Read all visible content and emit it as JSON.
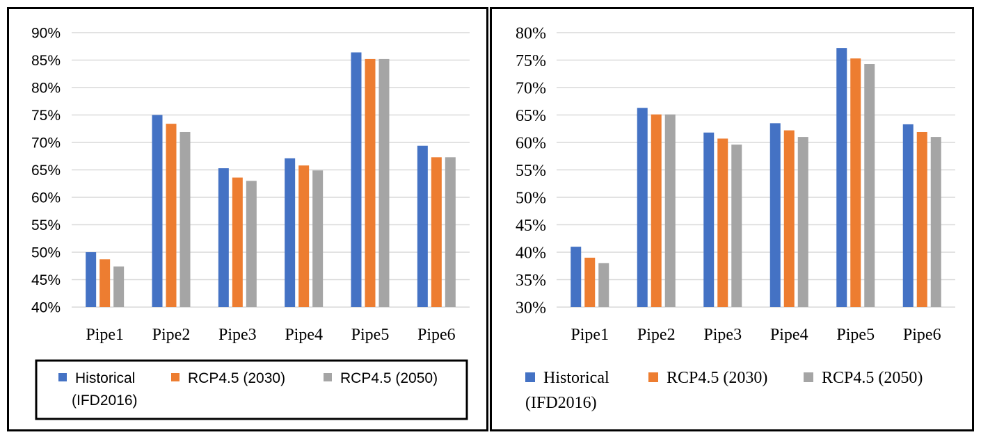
{
  "colors": {
    "historical": "#4472C4",
    "rcp2030": "#ED7D31",
    "rcp2050": "#A5A5A5",
    "grid": "#D9D9D9"
  },
  "chart_data": [
    {
      "type": "bar",
      "categories": [
        "Pipe1",
        "Pipe2",
        "Pipe3",
        "Pipe4",
        "Pipe5",
        "Pipe6"
      ],
      "series": [
        {
          "name": "Historical (IFD2016)",
          "values": [
            50.0,
            75.0,
            65.3,
            67.1,
            86.4,
            69.4
          ]
        },
        {
          "name": "RCP4.5 (2030)",
          "values": [
            48.7,
            73.4,
            63.6,
            65.8,
            85.2,
            67.3
          ]
        },
        {
          "name": "RCP4.5 (2050)",
          "values": [
            47.4,
            71.9,
            63.0,
            64.9,
            85.2,
            67.3
          ]
        }
      ],
      "ylim": [
        40,
        90
      ],
      "yticks": [
        "40%",
        "45%",
        "50%",
        "55%",
        "60%",
        "65%",
        "70%",
        "75%",
        "80%",
        "85%",
        "90%"
      ],
      "legend_lines": {
        "historical": [
          "Historical",
          "(IFD2016)"
        ],
        "rcp2030": "RCP4.5 (2030)",
        "rcp2050": "RCP4.5 (2050)"
      },
      "grid": true,
      "legend_position": "bottom"
    },
    {
      "type": "bar",
      "categories": [
        "Pipe1",
        "Pipe2",
        "Pipe3",
        "Pipe4",
        "Pipe5",
        "Pipe6"
      ],
      "series": [
        {
          "name": "Historical (IFD2016)",
          "values": [
            41.0,
            66.3,
            61.8,
            63.5,
            77.2,
            63.3
          ]
        },
        {
          "name": "RCP4.5 (2030)",
          "values": [
            39.0,
            65.1,
            60.7,
            62.2,
            75.3,
            61.9
          ]
        },
        {
          "name": "RCP4.5 (2050)",
          "values": [
            38.0,
            65.1,
            59.6,
            61.0,
            74.3,
            61.0
          ]
        }
      ],
      "ylim": [
        30,
        80
      ],
      "yticks": [
        "30%",
        "35%",
        "40%",
        "45%",
        "50%",
        "55%",
        "60%",
        "65%",
        "70%",
        "75%",
        "80%"
      ],
      "legend_lines": {
        "historical": [
          "Historical",
          "(IFD2016)"
        ],
        "rcp2030": "RCP4.5 (2030)",
        "rcp2050": "RCP4.5 (2050)"
      },
      "grid": true,
      "legend_position": "bottom"
    }
  ]
}
